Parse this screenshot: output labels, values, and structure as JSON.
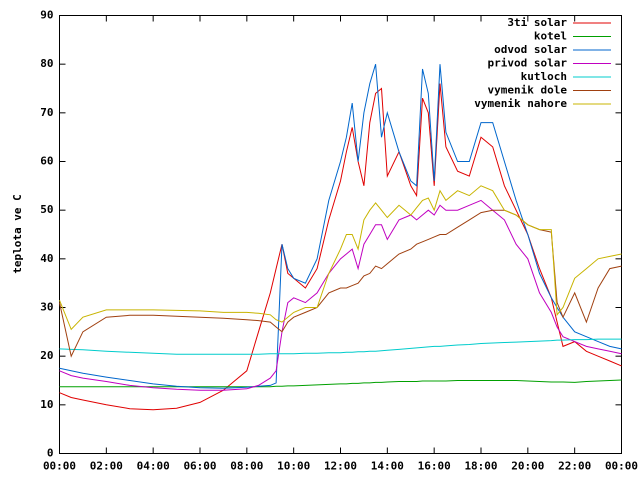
{
  "chart_data": {
    "type": "line",
    "ylabel": "teplota ve C",
    "x": [
      0,
      0.5,
      1,
      2,
      3,
      4,
      5,
      6,
      7,
      8,
      8.5,
      9,
      9.25,
      9.5,
      9.75,
      10,
      10.5,
      11,
      11.5,
      12,
      12.25,
      12.5,
      12.75,
      13,
      13.25,
      13.5,
      13.75,
      14,
      14.5,
      15,
      15.25,
      15.5,
      15.75,
      16,
      16.25,
      16.5,
      17,
      17.5,
      18,
      18.5,
      19,
      19.5,
      20,
      20.5,
      21,
      21.25,
      21.5,
      22,
      22.5,
      23,
      23.5,
      24
    ],
    "xlim": [
      0,
      24
    ],
    "xticks": [
      {
        "value": 0,
        "label": "00:00"
      },
      {
        "value": 2,
        "label": "02:00"
      },
      {
        "value": 4,
        "label": "04:00"
      },
      {
        "value": 6,
        "label": "06:00"
      },
      {
        "value": 8,
        "label": "08:00"
      },
      {
        "value": 10,
        "label": "10:00"
      },
      {
        "value": 12,
        "label": "12:00"
      },
      {
        "value": 14,
        "label": "14:00"
      },
      {
        "value": 16,
        "label": "16:00"
      },
      {
        "value": 18,
        "label": "18:00"
      },
      {
        "value": 20,
        "label": "20:00"
      },
      {
        "value": 22,
        "label": "22:00"
      },
      {
        "value": 24,
        "label": "00:00"
      }
    ],
    "ylim": [
      0,
      90
    ],
    "yticks": [
      0,
      10,
      20,
      30,
      40,
      50,
      60,
      70,
      80,
      90
    ],
    "legend": "top-right",
    "grid": false,
    "series": [
      {
        "name": "3ti solar",
        "color": "#e00000",
        "values": [
          12.5,
          11.5,
          11,
          10,
          9.2,
          9,
          9.3,
          10.5,
          13,
          17,
          25,
          33,
          38,
          43,
          37,
          36,
          34,
          38,
          48,
          56,
          62,
          67,
          60,
          55,
          68,
          74,
          75,
          57,
          62,
          55,
          53,
          73,
          70,
          55,
          76,
          63,
          58,
          57,
          65,
          63,
          55,
          50,
          45,
          38,
          32,
          27,
          22,
          23,
          21,
          20,
          19,
          18
        ]
      },
      {
        "name": "kotel",
        "color": "#00a000",
        "values": [
          13.7,
          13.7,
          13.7,
          13.7,
          13.7,
          13.7,
          13.7,
          13.7,
          13.7,
          13.7,
          13.7,
          13.7,
          13.8,
          13.8,
          13.9,
          13.9,
          14,
          14.1,
          14.2,
          14.3,
          14.3,
          14.4,
          14.4,
          14.5,
          14.5,
          14.6,
          14.6,
          14.7,
          14.8,
          14.8,
          14.8,
          14.9,
          14.9,
          14.9,
          14.9,
          14.9,
          15,
          15,
          15,
          15,
          15,
          15,
          14.9,
          14.8,
          14.7,
          14.7,
          14.7,
          14.6,
          14.8,
          14.9,
          15,
          15.1
        ]
      },
      {
        "name": "odvod solar",
        "color": "#0066cc",
        "values": [
          17.5,
          17,
          16.5,
          15.7,
          15,
          14.3,
          13.8,
          13.5,
          13.4,
          13.6,
          13.8,
          14,
          14.5,
          43,
          38,
          36,
          35,
          40,
          52,
          60,
          65,
          72,
          60,
          70,
          76,
          80,
          65,
          70,
          62,
          56,
          55,
          79,
          74,
          56,
          80,
          66,
          60,
          60,
          68,
          68,
          60,
          52,
          45,
          37,
          32,
          30,
          28,
          25,
          24,
          23,
          22,
          21.5
        ]
      },
      {
        "name": "privod solar",
        "color": "#c000c0",
        "values": [
          17,
          16,
          15.5,
          14.8,
          14,
          13.5,
          13.2,
          13,
          13,
          13.3,
          14,
          15.5,
          17,
          25,
          31,
          32,
          31,
          33,
          37,
          40,
          41,
          42,
          38,
          43,
          45,
          47,
          47,
          44,
          48,
          49,
          48,
          49,
          50,
          49,
          51,
          50,
          50,
          51,
          52,
          50,
          48,
          43,
          40,
          33,
          29,
          26,
          24,
          23,
          22,
          21.5,
          21,
          20.5
        ]
      },
      {
        "name": "kutloch",
        "color": "#00cccc",
        "values": [
          21.5,
          21.4,
          21.3,
          21,
          20.8,
          20.6,
          20.4,
          20.4,
          20.4,
          20.4,
          20.4,
          20.5,
          20.5,
          20.5,
          20.5,
          20.5,
          20.6,
          20.6,
          20.7,
          20.7,
          20.8,
          20.8,
          20.9,
          20.9,
          21,
          21,
          21.1,
          21.2,
          21.4,
          21.6,
          21.7,
          21.8,
          21.9,
          22,
          22,
          22.1,
          22.3,
          22.4,
          22.6,
          22.7,
          22.8,
          22.9,
          23,
          23.1,
          23.2,
          23.3,
          23.3,
          23.4,
          23.4,
          23.5,
          23.5,
          23.5
        ]
      },
      {
        "name": "vymenik dole",
        "color": "#a04010",
        "values": [
          31,
          20,
          25,
          28,
          28.4,
          28.4,
          28.2,
          28,
          27.8,
          27.5,
          27.3,
          27,
          26,
          25,
          27,
          28,
          29,
          30,
          33,
          34,
          34,
          34.5,
          35,
          36.5,
          37,
          38.5,
          38,
          39,
          41,
          42,
          43,
          43.5,
          44,
          44.5,
          45,
          45,
          46.5,
          48,
          49.5,
          50,
          50,
          49,
          47,
          46,
          45.5,
          31,
          28,
          33,
          27,
          34,
          38,
          38.5
        ]
      },
      {
        "name": "vymenik nahore",
        "color": "#c8b400",
        "values": [
          31.5,
          25.5,
          28,
          29.5,
          29.5,
          29.5,
          29.4,
          29.3,
          29,
          29,
          28.8,
          28.5,
          27.5,
          27,
          28,
          29,
          30,
          30,
          37,
          42,
          45,
          45,
          42,
          48,
          50,
          51.5,
          50,
          48.5,
          51,
          49,
          50.5,
          52,
          52.5,
          50,
          54,
          52,
          54,
          53,
          55,
          54,
          50,
          49,
          47,
          46,
          46,
          28.5,
          30,
          36,
          38,
          40,
          40.5,
          41
        ]
      }
    ]
  }
}
